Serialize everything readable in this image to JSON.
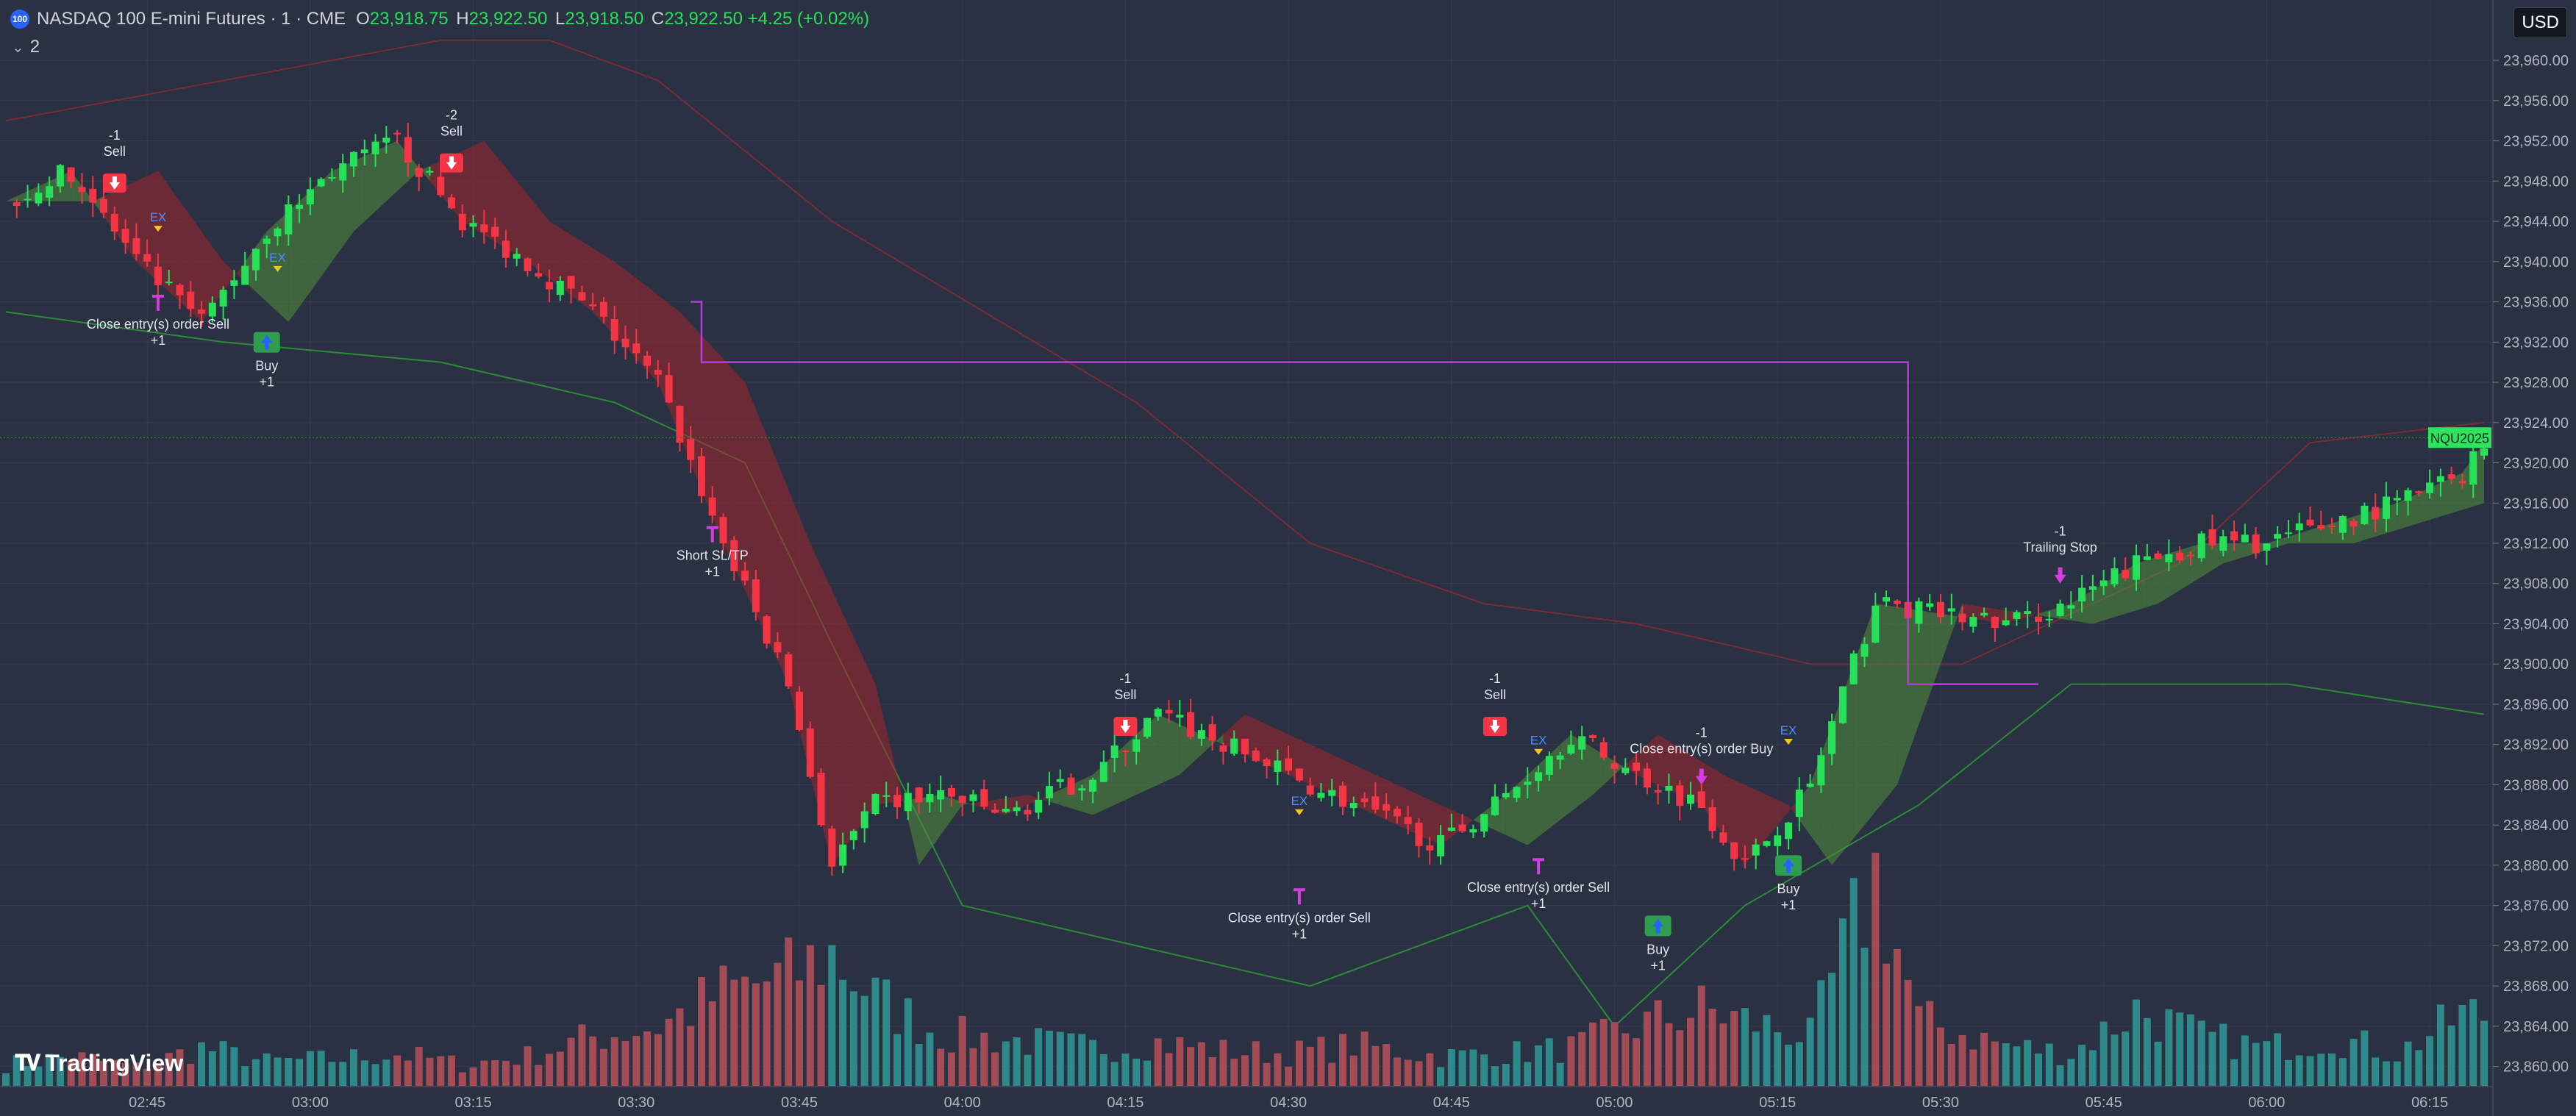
{
  "legend": {
    "badge": "100",
    "title": "NASDAQ 100 E-mini Futures · 1 · CME",
    "o_key": "O",
    "o": "23,918.75",
    "h_key": "H",
    "h": "23,922.50",
    "l_key": "L",
    "l": "23,918.50",
    "c_key": "C",
    "c": "23,922.50",
    "change": "+4.25 (+0.02%)",
    "indicators_count": "2"
  },
  "currency": "USD",
  "brand": "TradingView",
  "colors": {
    "background": "#2a3142",
    "up": "#26e05a",
    "down": "#f23645",
    "vol_up": "#2e8a8a",
    "vol_down": "#a34b57",
    "upper_band": "#7a2b36",
    "lower_band": "#2d8a3a",
    "trail": "#b43ed8"
  },
  "chart_data": {
    "type": "candlestick",
    "y_ticks": [
      "23,960.00",
      "23,956.00",
      "23,952.00",
      "23,948.00",
      "23,944.00",
      "23,940.00",
      "23,936.00",
      "23,932.00",
      "23,928.00",
      "23,924.00",
      "23,920.00",
      "23,916.00",
      "23,912.00",
      "23,908.00",
      "23,904.00",
      "23,900.00",
      "23,896.00",
      "23,892.00",
      "23,888.00",
      "23,884.00",
      "23,880.00",
      "23,876.00",
      "23,872.00",
      "23,868.00",
      "23,864.00",
      "23,860.00"
    ],
    "x_ticks": [
      "02:45",
      "03:00",
      "03:15",
      "03:30",
      "03:45",
      "04:00",
      "04:15",
      "04:30",
      "04:45",
      "05:00",
      "05:15",
      "05:30",
      "05:45",
      "06:00",
      "06:15"
    ],
    "ylim": [
      23858,
      23966
    ],
    "price_line": {
      "value": 23922.5,
      "symbol_label": "NQU2025",
      "price_label": "23,922.50"
    },
    "path_points": [
      [
        0,
        23946
      ],
      [
        6,
        23949
      ],
      [
        12,
        23940
      ],
      [
        18,
        23934
      ],
      [
        24,
        23943
      ],
      [
        30,
        23949
      ],
      [
        36,
        23952
      ],
      [
        42,
        23944
      ],
      [
        48,
        23940
      ],
      [
        54,
        23935
      ],
      [
        60,
        23928
      ],
      [
        66,
        23912
      ],
      [
        72,
        23898
      ],
      [
        76,
        23880
      ],
      [
        80,
        23886
      ],
      [
        86,
        23887
      ],
      [
        92,
        23885
      ],
      [
        100,
        23889
      ],
      [
        106,
        23895
      ],
      [
        112,
        23892
      ],
      [
        118,
        23889
      ],
      [
        124,
        23886
      ],
      [
        132,
        23882
      ],
      [
        138,
        23887
      ],
      [
        144,
        23893
      ],
      [
        150,
        23889
      ],
      [
        156,
        23886
      ],
      [
        160,
        23880
      ],
      [
        166,
        23888
      ],
      [
        172,
        23906
      ],
      [
        178,
        23905
      ],
      [
        184,
        23904
      ],
      [
        190,
        23906
      ],
      [
        196,
        23910
      ],
      [
        202,
        23912
      ],
      [
        208,
        23912
      ],
      [
        214,
        23914
      ],
      [
        220,
        23916
      ],
      [
        226,
        23919
      ],
      [
        228,
        23922
      ]
    ],
    "upper_band": [
      [
        0,
        23954
      ],
      [
        20,
        23958
      ],
      [
        40,
        23962
      ],
      [
        50,
        23962
      ],
      [
        60,
        23958
      ],
      [
        76,
        23944
      ],
      [
        90,
        23935
      ],
      [
        104,
        23926
      ],
      [
        120,
        23912
      ],
      [
        136,
        23906
      ],
      [
        150,
        23904
      ],
      [
        166,
        23900
      ],
      [
        180,
        23900
      ],
      [
        200,
        23910
      ],
      [
        212,
        23922
      ],
      [
        228,
        23924
      ]
    ],
    "lower_band": [
      [
        0,
        23935
      ],
      [
        20,
        23932
      ],
      [
        40,
        23930
      ],
      [
        56,
        23926
      ],
      [
        68,
        23920
      ],
      [
        76,
        23902
      ],
      [
        88,
        23876
      ],
      [
        104,
        23872
      ],
      [
        120,
        23868
      ],
      [
        140,
        23876
      ],
      [
        148,
        23864
      ],
      [
        160,
        23876
      ],
      [
        176,
        23886
      ],
      [
        190,
        23898
      ],
      [
        210,
        23898
      ],
      [
        222,
        23896
      ],
      [
        228,
        23895
      ]
    ],
    "trail_line": [
      [
        63,
        23936
      ],
      [
        64,
        23936
      ],
      [
        64,
        23930
      ],
      [
        175,
        23930
      ],
      [
        175,
        23898
      ],
      [
        187,
        23898
      ]
    ],
    "volume": {
      "max": 400,
      "bars": [
        [
          0,
          40
        ],
        [
          6,
          55
        ],
        [
          12,
          35
        ],
        [
          18,
          70
        ],
        [
          24,
          45
        ],
        [
          30,
          50
        ],
        [
          36,
          60
        ],
        [
          42,
          40
        ],
        [
          48,
          55
        ],
        [
          54,
          90
        ],
        [
          60,
          110
        ],
        [
          66,
          170
        ],
        [
          72,
          200
        ],
        [
          76,
          240
        ],
        [
          80,
          160
        ],
        [
          86,
          95
        ],
        [
          92,
          85
        ],
        [
          100,
          70
        ],
        [
          106,
          80
        ],
        [
          112,
          65
        ],
        [
          118,
          60
        ],
        [
          124,
          75
        ],
        [
          132,
          55
        ],
        [
          138,
          60
        ],
        [
          144,
          70
        ],
        [
          150,
          110
        ],
        [
          156,
          140
        ],
        [
          160,
          120
        ],
        [
          166,
          90
        ],
        [
          172,
          380
        ],
        [
          176,
          120
        ],
        [
          184,
          75
        ],
        [
          190,
          60
        ],
        [
          196,
          140
        ],
        [
          202,
          90
        ],
        [
          208,
          70
        ],
        [
          214,
          90
        ],
        [
          220,
          60
        ],
        [
          226,
          130
        ]
      ]
    },
    "annotations": [
      {
        "x": 10,
        "y": 23947,
        "text": "-1",
        "text2": "Sell",
        "kind": "sell",
        "offset": -70
      },
      {
        "x": 41,
        "y": 23949,
        "text": "-2",
        "text2": "Sell",
        "kind": "sell",
        "offset": -70
      },
      {
        "x": 14,
        "y": 23937,
        "text": "Close entry(s) order Sell",
        "text2": "+1",
        "kind": "close",
        "offset": 50
      },
      {
        "x": 24,
        "y": 23933,
        "text": "Buy",
        "text2": "+1",
        "kind": "buy",
        "offset": 40
      },
      {
        "x": 65,
        "y": 23914,
        "text": "Short SL/TP",
        "text2": "+1",
        "kind": "close",
        "offset": 50
      },
      {
        "x": 103,
        "y": 23893,
        "text": "-1",
        "text2": "Sell",
        "kind": "sell",
        "offset": -70
      },
      {
        "x": 119,
        "y": 23878,
        "text": "Close entry(s) order Sell",
        "text2": "+1",
        "kind": "close",
        "offset": 50
      },
      {
        "x": 137,
        "y": 23893,
        "text": "-1",
        "text2": "Sell",
        "kind": "sell",
        "offset": -70
      },
      {
        "x": 141,
        "y": 23881,
        "text": "Close entry(s) order Sell",
        "text2": "+1",
        "kind": "close",
        "offset": 50
      },
      {
        "x": 152,
        "y": 23875,
        "text": "Buy",
        "text2": "+1",
        "kind": "buy",
        "offset": 40
      },
      {
        "x": 156,
        "y": 23888,
        "text": "-1",
        "text2": "Close entry(s) order Buy",
        "kind": "sellclose",
        "offset": -65
      },
      {
        "x": 164,
        "y": 23881,
        "text": "Buy",
        "text2": "+1",
        "kind": "buy",
        "offset": 40
      },
      {
        "x": 189,
        "y": 23908,
        "text": "-1",
        "text2": "Trailing Stop",
        "kind": "sellclose",
        "offset": -65
      }
    ],
    "ex_labels": [
      [
        14,
        23944
      ],
      [
        25,
        23940
      ],
      [
        119,
        23886
      ],
      [
        141,
        23892
      ],
      [
        164,
        23893
      ]
    ],
    "buy_arrow_label": "Buy",
    "sell_arrow_label": "Sell",
    "ex_text": "EX"
  }
}
